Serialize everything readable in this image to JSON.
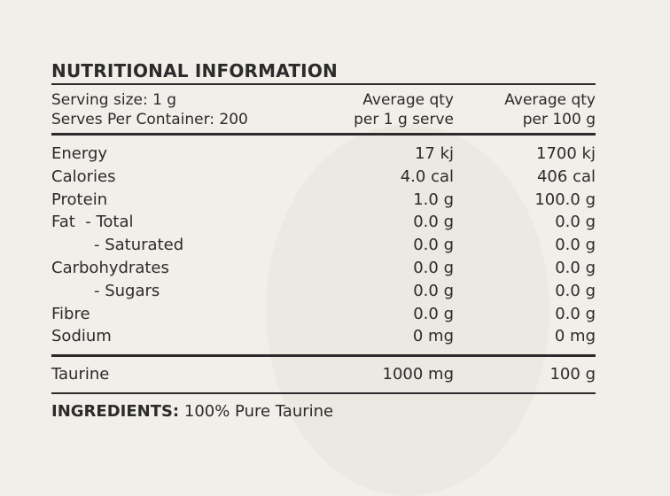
{
  "panel": {
    "title": "NUTRITIONAL INFORMATION",
    "serving_size": "Serving size: 1 g",
    "serves_per_container": "Serves Per Container: 200",
    "col1_line1": "Average qty",
    "col1_line2": "per 1 g serve",
    "col2_line1": "Average qty",
    "col2_line2": "per 100 g",
    "rows": [
      {
        "name": "Energy",
        "per_serve": "17 kj",
        "per_100g": "1700 kj"
      },
      {
        "name": "Calories",
        "per_serve": "4.0 cal",
        "per_100g": "406 cal"
      },
      {
        "name": "Protein",
        "per_serve": "1.0 g",
        "per_100g": "100.0 g"
      },
      {
        "name": "Fat  - Total",
        "per_serve": "0.0 g",
        "per_100g": "0.0 g"
      },
      {
        "name": "- Saturated",
        "per_serve": "0.0 g",
        "per_100g": "0.0 g"
      },
      {
        "name": "Carbohydrates",
        "per_serve": "0.0 g",
        "per_100g": "0.0 g"
      },
      {
        "name": "- Sugars",
        "per_serve": "0.0 g",
        "per_100g": "0.0 g"
      },
      {
        "name": "Fibre",
        "per_serve": "0.0 g",
        "per_100g": "0.0 g"
      },
      {
        "name": "Sodium",
        "per_serve": "0 mg",
        "per_100g": "0 mg"
      }
    ],
    "taurine": {
      "name": "Taurine",
      "per_serve": "1000 mg",
      "per_100g": "100 g"
    },
    "ingredients_label": "INGREDIENTS:",
    "ingredients_text": " 100% Pure Taurine"
  }
}
